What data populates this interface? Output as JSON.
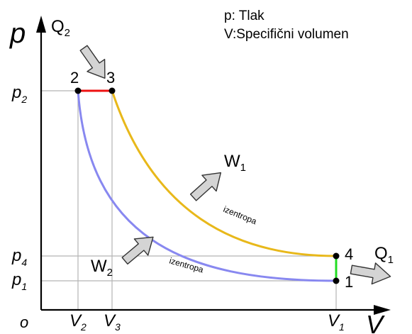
{
  "legend": {
    "pressure": "p: Tlak",
    "volume": "V:Specifični volumen"
  },
  "axes": {
    "y_symbol": "p",
    "x_symbol": "V",
    "origin": "o"
  },
  "pressure_ticks": {
    "p2": {
      "main": "p",
      "sub": "2"
    },
    "p4": {
      "main": "p",
      "sub": "4"
    },
    "p1": {
      "main": "p",
      "sub": "1"
    }
  },
  "volume_ticks": {
    "v2": {
      "main": "V",
      "sub": "2"
    },
    "v3": {
      "main": "V",
      "sub": "3"
    },
    "v1": {
      "main": "V",
      "sub": "1"
    }
  },
  "points": {
    "pt1": "1",
    "pt2": "2",
    "pt3": "3",
    "pt4": "4"
  },
  "heat": {
    "q2": {
      "main": "Q",
      "sub": "2"
    },
    "q1": {
      "main": "Q",
      "sub": "1"
    }
  },
  "work": {
    "w1": {
      "main": "W",
      "sub": "1"
    },
    "w2": {
      "main": "W",
      "sub": "2"
    }
  },
  "curve_labels": {
    "upper": "izentropa",
    "lower": "izentropa"
  },
  "colors": {
    "isobar": "#ee1111",
    "isochore": "#22dd22",
    "upper_isentrope": "#e8b81a",
    "lower_isentrope": "#8888f0",
    "guides": "#b4b4b4",
    "arrows_fill": "#d4d4d4",
    "arrows_stroke": "#333333"
  }
}
